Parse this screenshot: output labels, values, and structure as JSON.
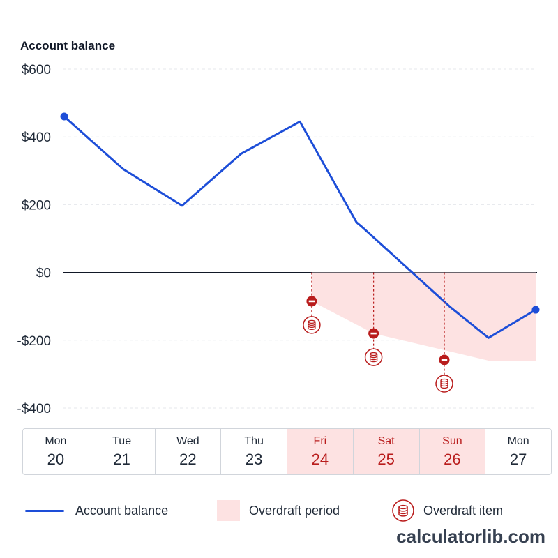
{
  "chart_data": {
    "type": "line",
    "title": "Account balance",
    "ylim": [
      -400,
      600
    ],
    "y_ticks": [
      600,
      400,
      200,
      0,
      -200,
      -400
    ],
    "y_tick_labels": [
      "$600",
      "$400",
      "$200",
      "$0",
      "-$200",
      "-$400"
    ],
    "grid": true,
    "days": [
      {
        "name": "Mon",
        "num": "20",
        "overdraft": false
      },
      {
        "name": "Tue",
        "num": "21",
        "overdraft": false
      },
      {
        "name": "Wed",
        "num": "22",
        "overdraft": false
      },
      {
        "name": "Thu",
        "num": "23",
        "overdraft": false
      },
      {
        "name": "Fri",
        "num": "24",
        "overdraft": true
      },
      {
        "name": "Sat",
        "num": "25",
        "overdraft": true
      },
      {
        "name": "Sun",
        "num": "26",
        "overdraft": true
      },
      {
        "name": "Mon",
        "num": "27",
        "overdraft": false
      }
    ],
    "series": [
      {
        "name": "Account balance",
        "color": "#1d4ed8",
        "points": [
          {
            "x": 0.0,
            "y": 460
          },
          {
            "x": 1.0,
            "y": 305
          },
          {
            "x": 2.0,
            "y": 197
          },
          {
            "x": 3.0,
            "y": 350
          },
          {
            "x": 4.0,
            "y": 445
          },
          {
            "x": 4.96,
            "y": 148
          },
          {
            "x": 5.05,
            "y": 135
          },
          {
            "x": 6.55,
            "y": -102
          },
          {
            "x": 7.2,
            "y": -193
          },
          {
            "x": 8.0,
            "y": -110
          }
        ]
      }
    ],
    "overdraft_period": {
      "name": "Overdraft period",
      "color": "#fde2e2",
      "lower_boundary": [
        {
          "x": 4.2,
          "y": -85
        },
        {
          "x": 5.25,
          "y": -180
        },
        {
          "x": 7.2,
          "y": -260
        },
        {
          "x": 8.0,
          "y": -260
        }
      ]
    },
    "overdraft_items": {
      "name": "Overdraft item",
      "color": "#b91c1c",
      "items": [
        {
          "x": 4.2,
          "y": -85
        },
        {
          "x": 5.25,
          "y": -180
        },
        {
          "x": 6.45,
          "y": -258
        }
      ]
    },
    "legend_position": "bottom"
  },
  "watermark": "calculatorlib.com"
}
